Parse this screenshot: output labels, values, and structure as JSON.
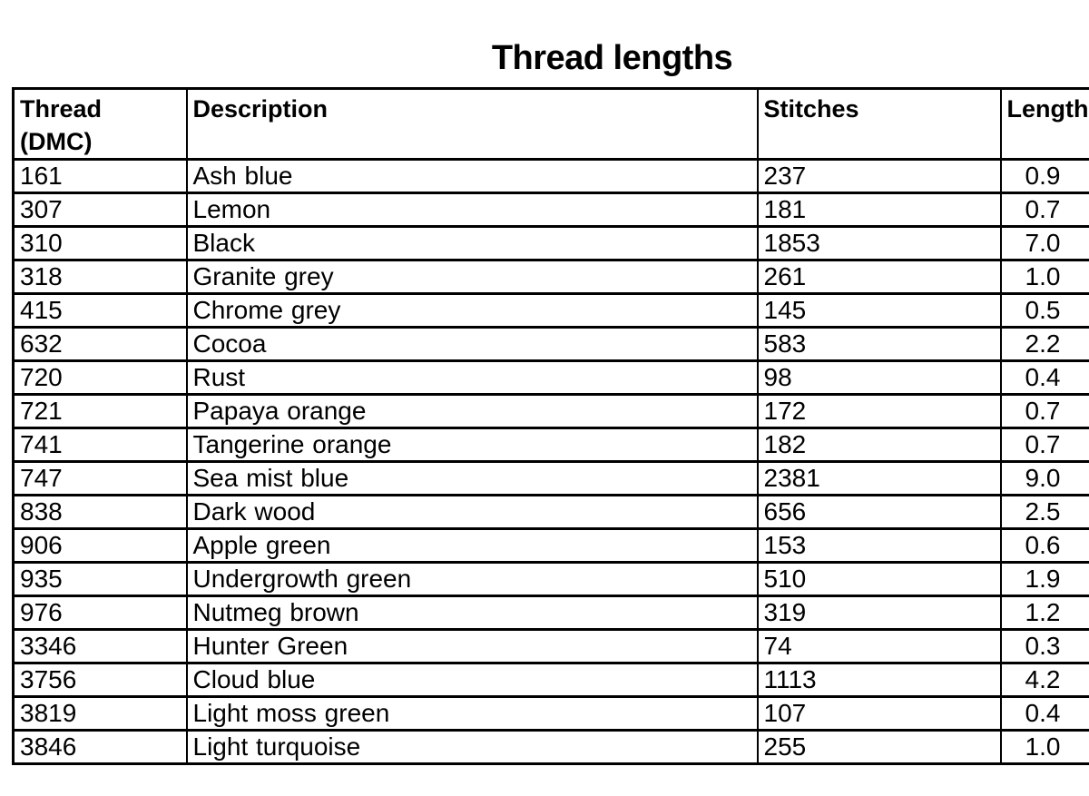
{
  "page": {
    "background": "#ffffff",
    "text_color": "#000000",
    "border_color": "#000000"
  },
  "title": "Thread lengths",
  "table": {
    "headers": {
      "thread": "Thread\n(DMC)",
      "description": "Description",
      "stitches": "Stitches",
      "length": "Length (m)"
    },
    "rows": [
      {
        "dmc": "161",
        "description": "Ash blue",
        "stitches": "237",
        "length": "0.9"
      },
      {
        "dmc": "307",
        "description": "Lemon",
        "stitches": "181",
        "length": "0.7"
      },
      {
        "dmc": "310",
        "description": "Black",
        "stitches": "1853",
        "length": "7.0"
      },
      {
        "dmc": "318",
        "description": "Granite grey",
        "stitches": "261",
        "length": "1.0"
      },
      {
        "dmc": "415",
        "description": "Chrome grey",
        "stitches": "145",
        "length": "0.5"
      },
      {
        "dmc": "632",
        "description": "Cocoa",
        "stitches": "583",
        "length": "2.2"
      },
      {
        "dmc": "720",
        "description": "Rust",
        "stitches": "98",
        "length": "0.4"
      },
      {
        "dmc": "721",
        "description": "Papaya orange",
        "stitches": "172",
        "length": "0.7"
      },
      {
        "dmc": "741",
        "description": "Tangerine orange",
        "stitches": "182",
        "length": "0.7"
      },
      {
        "dmc": "747",
        "description": "Sea mist blue",
        "stitches": "2381",
        "length": "9.0"
      },
      {
        "dmc": "838",
        "description": "Dark wood",
        "stitches": "656",
        "length": "2.5"
      },
      {
        "dmc": "906",
        "description": "Apple green",
        "stitches": "153",
        "length": "0.6"
      },
      {
        "dmc": "935",
        "description": "Undergrowth green",
        "stitches": "510",
        "length": "1.9"
      },
      {
        "dmc": "976",
        "description": "Nutmeg brown",
        "stitches": "319",
        "length": "1.2"
      },
      {
        "dmc": "3346",
        "description": "Hunter Green",
        "stitches": "74",
        "length": "0.3"
      },
      {
        "dmc": "3756",
        "description": "Cloud blue",
        "stitches": "1113",
        "length": "4.2"
      },
      {
        "dmc": "3819",
        "description": "Light moss green",
        "stitches": "107",
        "length": "0.4"
      },
      {
        "dmc": "3846",
        "description": "Light turquoise",
        "stitches": "255",
        "length": "1.0"
      }
    ]
  }
}
